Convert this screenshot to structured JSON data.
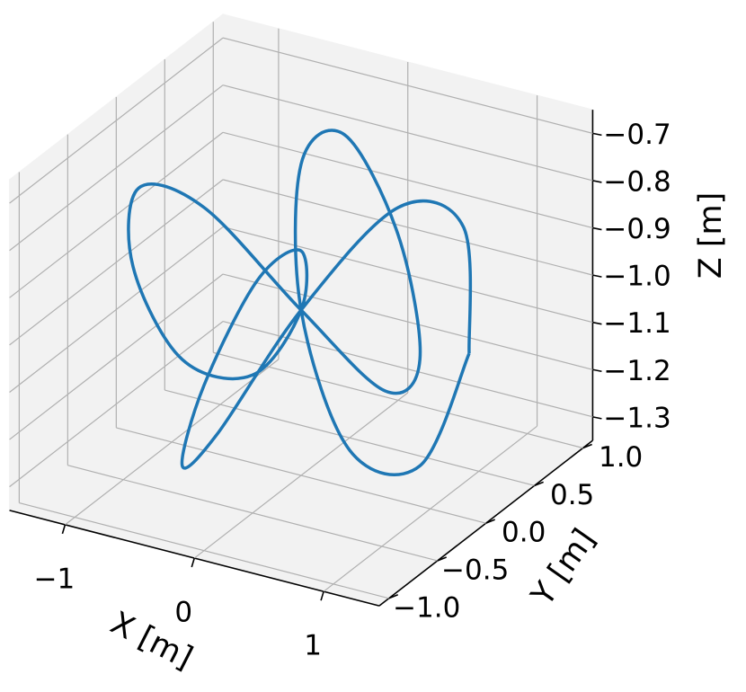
{
  "chart_data": {
    "type": "line3d",
    "xlabel": "X [m]",
    "ylabel": "Y [m]",
    "zlabel": "Z [m]",
    "color": "#1f77b4",
    "x": [
      1.3,
      1.088,
      0.563,
      0,
      -0.325,
      -0.291,
      0,
      0.291,
      0.325,
      0,
      -0.563,
      -1.088,
      -1.3,
      -1.088,
      -0.563,
      0,
      0.325,
      0.291,
      0,
      -0.291,
      -0.325,
      0,
      0.563,
      1.088,
      1.3
    ],
    "y": [
      0,
      0.224,
      0.25,
      0,
      -0.433,
      -0.837,
      -1,
      -0.837,
      -0.433,
      0,
      0.25,
      0.224,
      0,
      -0.224,
      -0.25,
      0,
      0.433,
      0.837,
      1,
      0.837,
      0.433,
      0,
      -0.25,
      -0.224,
      0
    ],
    "z": [
      -1,
      -0.783,
      -0.783,
      -1,
      -1.217,
      -1.217,
      -1,
      -0.783,
      -0.783,
      -1,
      -1.217,
      -1.217,
      -1,
      -0.783,
      -0.783,
      -1,
      -1.217,
      -1.217,
      -1,
      -0.783,
      -0.783,
      -1,
      -1.217,
      -1.217,
      -1
    ],
    "xlim": [
      -1.43,
      1.43
    ],
    "xticks": [
      {
        "value": -1,
        "label": "−1"
      },
      0,
      1
    ],
    "ylim": [
      -1.1,
      1.1
    ],
    "yticks": [
      {
        "value": -1,
        "label": "−1.0"
      },
      {
        "value": -0.5,
        "label": "−0.5"
      },
      {
        "value": 0,
        "label": "0.0"
      },
      {
        "value": 0.5,
        "label": "0.5"
      },
      {
        "value": 1,
        "label": "1.0"
      }
    ],
    "zlim": [
      -1.35,
      -0.65
    ],
    "zticks": [
      {
        "value": -1.3,
        "label": "−1.3"
      },
      {
        "value": -1.2,
        "label": "−1.2"
      },
      {
        "value": -1.1,
        "label": "−1.1"
      },
      {
        "value": -1.0,
        "label": "−1.0"
      },
      {
        "value": -0.9,
        "label": "−0.9"
      },
      {
        "value": -0.8,
        "label": "−0.8"
      },
      {
        "value": -0.7,
        "label": "−0.7"
      }
    ],
    "grid": true
  }
}
